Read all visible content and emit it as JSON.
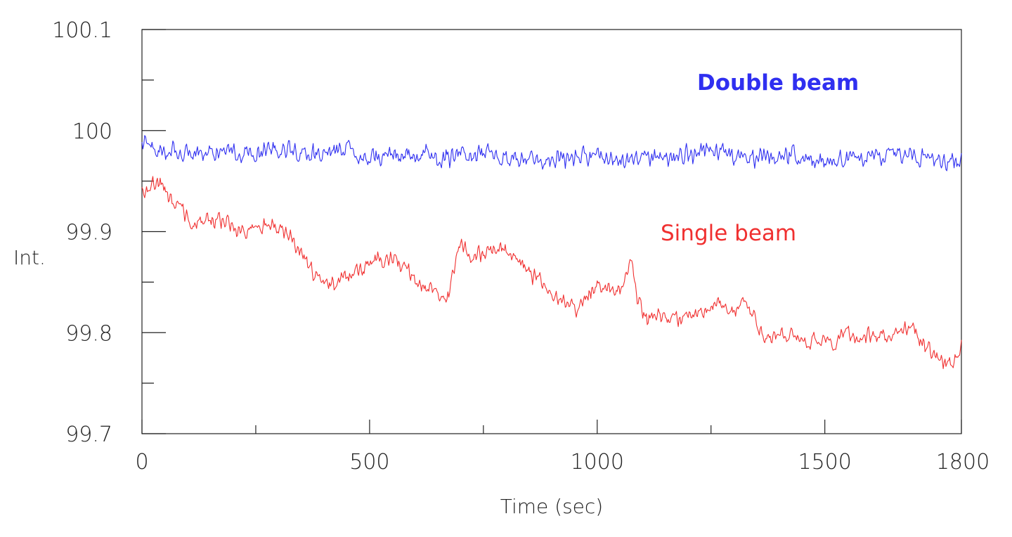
{
  "chart_data": {
    "type": "line",
    "xlabel": "Time (sec)",
    "ylabel": "Int.",
    "xlim": [
      0,
      1800
    ],
    "ylim": [
      99.7,
      100.1
    ],
    "x_ticks_major": [
      0,
      500,
      1000,
      1500,
      1800
    ],
    "x_ticks_minor": [
      250,
      750,
      1250
    ],
    "x_tick_labels": [
      "0",
      "500",
      "1000",
      "1500",
      "1800"
    ],
    "y_ticks_major": [
      99.7,
      99.8,
      99.9,
      100,
      100.1
    ],
    "y_ticks_minor": [
      99.75,
      99.85,
      99.95,
      100.05
    ],
    "y_tick_labels": [
      "99.7",
      "99.8",
      "99.9",
      "100",
      "100.1"
    ],
    "grid": false,
    "series": [
      {
        "name": "Double beam",
        "color": "#2f2ff0",
        "x": [
          0,
          50,
          100,
          150,
          200,
          250,
          300,
          350,
          400,
          450,
          500,
          550,
          600,
          650,
          700,
          750,
          800,
          850,
          900,
          950,
          1000,
          1050,
          1100,
          1150,
          1200,
          1250,
          1300,
          1350,
          1400,
          1450,
          1500,
          1550,
          1600,
          1650,
          1700,
          1750,
          1800
        ],
        "values": [
          99.985,
          99.982,
          99.978,
          99.98,
          99.977,
          99.979,
          99.98,
          99.978,
          99.976,
          99.98,
          99.974,
          99.975,
          99.978,
          99.974,
          99.976,
          99.977,
          99.976,
          99.973,
          99.97,
          99.973,
          99.975,
          99.972,
          99.971,
          99.974,
          99.977,
          99.98,
          99.976,
          99.972,
          99.974,
          99.975,
          99.973,
          99.972,
          99.974,
          99.975,
          99.973,
          99.97,
          99.972
        ],
        "noise_amplitude": 0.012
      },
      {
        "name": "Single beam",
        "color": "#f03030",
        "x": [
          0,
          20,
          40,
          60,
          80,
          100,
          125,
          150,
          175,
          200,
          225,
          250,
          275,
          300,
          325,
          350,
          375,
          400,
          425,
          450,
          475,
          500,
          525,
          550,
          575,
          600,
          625,
          650,
          670,
          685,
          700,
          725,
          750,
          775,
          790,
          810,
          830,
          850,
          875,
          900,
          925,
          950,
          975,
          1000,
          1020,
          1040,
          1060,
          1075,
          1090,
          1110,
          1130,
          1160,
          1200,
          1230,
          1260,
          1280,
          1300,
          1320,
          1340,
          1360,
          1380,
          1400,
          1430,
          1460,
          1490,
          1520,
          1550,
          1580,
          1610,
          1640,
          1670,
          1690,
          1720,
          1750,
          1770,
          1790,
          1800
        ],
        "values": [
          99.94,
          99.945,
          99.95,
          99.935,
          99.925,
          99.915,
          99.905,
          99.915,
          99.91,
          99.905,
          99.9,
          99.902,
          99.905,
          99.902,
          99.895,
          99.88,
          99.86,
          99.85,
          99.845,
          99.855,
          99.86,
          99.87,
          99.872,
          99.875,
          99.865,
          99.85,
          99.845,
          99.84,
          99.83,
          99.86,
          99.885,
          99.875,
          99.878,
          99.88,
          99.885,
          99.875,
          99.87,
          99.86,
          99.85,
          99.84,
          99.83,
          99.822,
          99.835,
          99.85,
          99.845,
          99.84,
          99.855,
          99.87,
          99.83,
          99.81,
          99.815,
          99.81,
          99.815,
          99.82,
          99.83,
          99.825,
          99.82,
          99.83,
          99.82,
          99.8,
          99.79,
          99.795,
          99.8,
          99.79,
          99.795,
          99.79,
          99.8,
          99.795,
          99.8,
          99.795,
          99.8,
          99.81,
          99.785,
          99.775,
          99.765,
          99.775,
          99.785
        ],
        "noise_amplitude": 0.01
      }
    ]
  }
}
